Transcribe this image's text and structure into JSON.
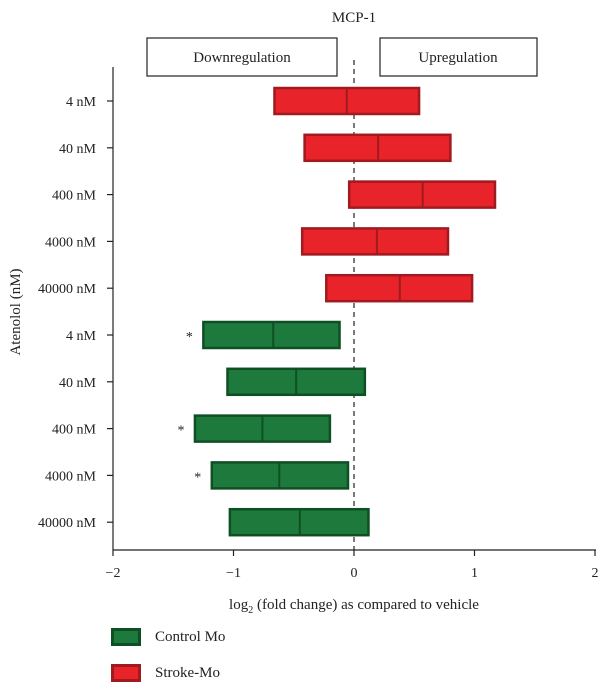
{
  "chart_data": {
    "type": "bar",
    "title": "MCP-1",
    "xlabel_prefix": "log",
    "xlabel_sub": "2",
    "xlabel_suffix": " (fold change) as compared to vehicle",
    "ylabel": "Atenolol (nM)",
    "xlim": [
      -2,
      2
    ],
    "xticks": [
      "−2",
      "−1",
      "0",
      "1",
      "2"
    ],
    "xtick_values": [
      -2,
      -1,
      0,
      1,
      2
    ],
    "reference_line": 0,
    "annotations": {
      "left_box": "Downregulation",
      "right_box": "Upregulation"
    },
    "series": [
      {
        "name": "Stroke-Mo",
        "color": "#e8232a",
        "edge": "#a01a1f",
        "rows": [
          {
            "label": "4 nM",
            "low": -0.66,
            "mid": -0.06,
            "high": 0.54,
            "star": ""
          },
          {
            "label": "40 nM",
            "low": -0.41,
            "mid": 0.2,
            "high": 0.8,
            "star": ""
          },
          {
            "label": "400 nM",
            "low": -0.04,
            "mid": 0.57,
            "high": 1.17,
            "star": ""
          },
          {
            "label": "4000 nM",
            "low": -0.43,
            "mid": 0.19,
            "high": 0.78,
            "star": ""
          },
          {
            "label": "40000 nM",
            "low": -0.23,
            "mid": 0.38,
            "high": 0.98,
            "star": ""
          }
        ]
      },
      {
        "name": "Control Mo",
        "color": "#1e7a3c",
        "edge": "#0e4f24",
        "rows": [
          {
            "label": "4 nM",
            "low": -1.25,
            "mid": -0.67,
            "high": -0.12,
            "star": "*"
          },
          {
            "label": "40 nM",
            "low": -1.05,
            "mid": -0.48,
            "high": 0.09,
            "star": ""
          },
          {
            "label": "400 nM",
            "low": -1.32,
            "mid": -0.76,
            "high": -0.2,
            "star": "*"
          },
          {
            "label": "4000 nM",
            "low": -1.18,
            "mid": -0.62,
            "high": -0.05,
            "star": "*"
          },
          {
            "label": "40000 nM",
            "low": -1.03,
            "mid": -0.45,
            "high": 0.12,
            "star": ""
          }
        ]
      }
    ],
    "legend": [
      {
        "name": "Control Mo",
        "color": "#1e7a3c",
        "edge": "#0e4f24"
      },
      {
        "name": "Stroke-Mo",
        "color": "#e8232a",
        "edge": "#a01a1f"
      }
    ]
  }
}
